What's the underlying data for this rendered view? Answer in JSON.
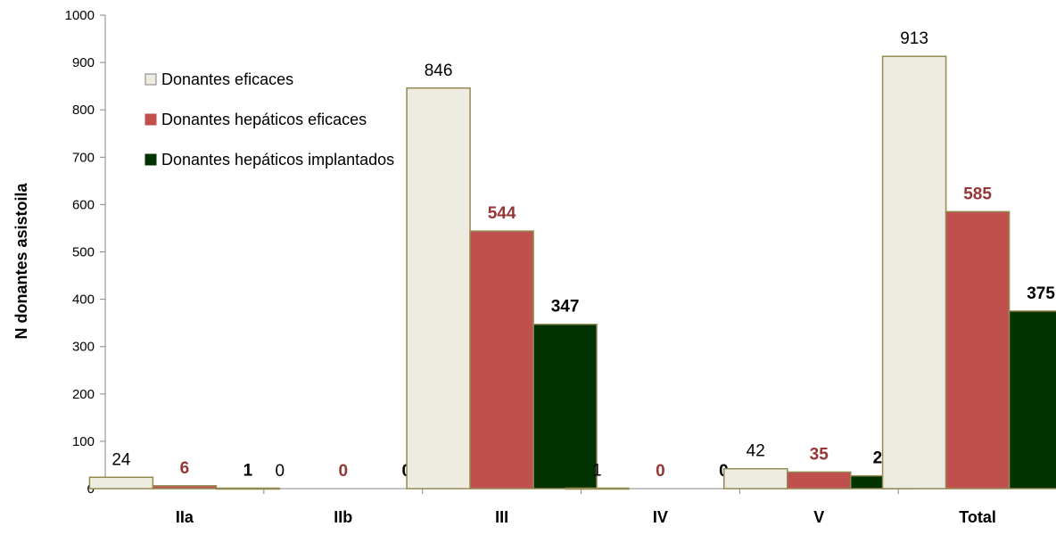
{
  "chart_data": {
    "type": "bar",
    "title": "",
    "xlabel": "",
    "ylabel": "N donantes asistoila",
    "ylim": [
      0,
      1000
    ],
    "yticks": [
      0,
      100,
      200,
      300,
      400,
      500,
      600,
      700,
      800,
      900,
      1000
    ],
    "categories": [
      "IIa",
      "IIb",
      "III",
      "IV",
      "V",
      "Total"
    ],
    "series": [
      {
        "name": "Donantes eficaces",
        "values": [
          24,
          0,
          846,
          1,
          42,
          913
        ],
        "fill": "#EEECE1",
        "stroke": "#948A54",
        "label_color": "#000000",
        "label_bold": false
      },
      {
        "name": "Donantes hepáticos eficaces",
        "values": [
          6,
          0,
          544,
          0,
          35,
          585
        ],
        "fill": "#C0504D",
        "stroke": "#948A54",
        "label_color": "#953735",
        "label_bold": true
      },
      {
        "name": "Donantes hepáticos implantados",
        "values": [
          1,
          0,
          347,
          0,
          27,
          375
        ],
        "fill": "#003300",
        "stroke": "#948A54",
        "label_color": "#000000",
        "label_bold": true
      }
    ],
    "legend_position": "top-left",
    "grid": false
  }
}
